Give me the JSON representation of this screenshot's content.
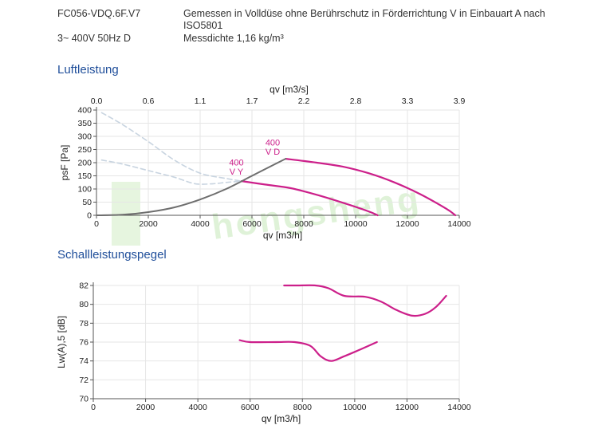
{
  "header": {
    "model": "FC056-VDQ.6F.V7",
    "note_line1": "Gemessen in Volldüse ohne Berührschutz in Förderrichtung V in Einbauart A nach",
    "note_line2": "ISO5801",
    "supply": "3~ 400V 50Hz D",
    "density": "Messdichte 1,16 kg/m³"
  },
  "watermark": "hongsheng",
  "colors": {
    "magenta": "#cc1f8a",
    "dark": "#6e6e6e",
    "dashed": "#c8d4e0",
    "title": "#1f4e9a"
  },
  "chart_data": [
    {
      "type": "line",
      "title": "Luftleistung",
      "xlabel": "qv [m3/h]",
      "ylabel": "psF [Pa]",
      "x2label": "qv [m3/s]",
      "xlim": [
        0,
        14000
      ],
      "ylim": [
        0,
        400
      ],
      "xticks": [
        0,
        2000,
        4000,
        6000,
        8000,
        10000,
        12000,
        14000
      ],
      "yticks": [
        0,
        50,
        100,
        150,
        200,
        250,
        300,
        350,
        400
      ],
      "x2ticks": [
        {
          "label": "0.0",
          "at": 0
        },
        {
          "label": "0.6",
          "at": 2000
        },
        {
          "label": "1.1",
          "at": 4000
        },
        {
          "label": "1.7",
          "at": 6000
        },
        {
          "label": "2.2",
          "at": 8000
        },
        {
          "label": "2.8",
          "at": 10000
        },
        {
          "label": "3.3",
          "at": 12000
        },
        {
          "label": "3.9",
          "at": 14000
        }
      ],
      "annotations": [
        {
          "text": "400",
          "x": 5400,
          "y": 190
        },
        {
          "text": "V Y",
          "x": 5400,
          "y": 155
        },
        {
          "text": "400",
          "x": 6800,
          "y": 265
        },
        {
          "text": "V D",
          "x": 6800,
          "y": 230
        }
      ],
      "series": [
        {
          "style": "magenta",
          "x": [
            7300,
            8500,
            9500,
            10500,
            11500,
            12500,
            13500,
            13850
          ],
          "y": [
            215,
            200,
            185,
            160,
            125,
            80,
            25,
            0
          ]
        },
        {
          "style": "magenta",
          "x": [
            5600,
            6500,
            7500,
            8500,
            9500,
            10500,
            10850
          ],
          "y": [
            130,
            117,
            103,
            78,
            48,
            15,
            0
          ]
        },
        {
          "style": "dark",
          "x": [
            0,
            1000,
            2000,
            3000,
            4000,
            5000,
            6000,
            7000,
            7300
          ],
          "y": [
            0,
            2,
            12,
            30,
            60,
            100,
            150,
            200,
            215
          ]
        },
        {
          "style": "dashed",
          "x": [
            200,
            1000,
            2000,
            3000,
            4000,
            5000,
            5600
          ],
          "y": [
            390,
            345,
            280,
            210,
            160,
            140,
            130
          ]
        },
        {
          "style": "dashed",
          "x": [
            200,
            1000,
            2000,
            3000,
            3800,
            4500,
            5000,
            5600
          ],
          "y": [
            210,
            195,
            170,
            145,
            120,
            120,
            125,
            130
          ]
        }
      ]
    },
    {
      "type": "line",
      "title": "Schallleistungspegel",
      "xlabel": "qv [m3/h]",
      "ylabel": "Lw(A),5 [dB]",
      "xlim": [
        0,
        14000
      ],
      "ylim": [
        70,
        82
      ],
      "xticks": [
        0,
        2000,
        4000,
        6000,
        8000,
        10000,
        12000,
        14000
      ],
      "yticks": [
        70,
        72,
        74,
        76,
        78,
        80,
        82
      ],
      "series": [
        {
          "style": "magenta",
          "x": [
            7300,
            7800,
            8500,
            9000,
            9600,
            10400,
            11000,
            11600,
            12200,
            12700,
            13100,
            13500
          ],
          "y": [
            82,
            82,
            82,
            81.7,
            80.9,
            80.8,
            80.3,
            79.4,
            78.8,
            79,
            79.7,
            80.9
          ]
        },
        {
          "style": "magenta",
          "x": [
            5600,
            6000,
            7000,
            7700,
            8300,
            8700,
            9100,
            9600,
            10200,
            10850
          ],
          "y": [
            76.2,
            76,
            76,
            76,
            75.6,
            74.5,
            74,
            74.5,
            75.2,
            76
          ]
        }
      ]
    }
  ]
}
